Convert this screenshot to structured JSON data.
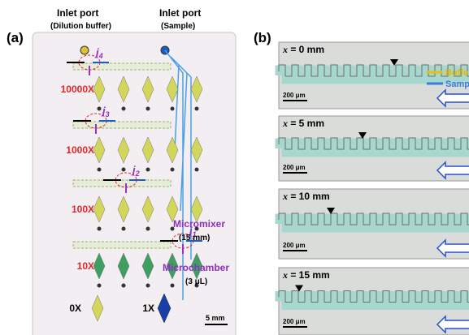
{
  "panel_a": {
    "label": "(a)",
    "inlets": [
      {
        "title": "Inlet port",
        "subtitle": "(Dilution buffer)"
      },
      {
        "title": "Inlet port",
        "subtitle": "(Sample)"
      }
    ],
    "junctions": [
      {
        "symbol": "j",
        "index": "4"
      },
      {
        "symbol": "j",
        "index": "3"
      },
      {
        "symbol": "j",
        "index": "2"
      },
      {
        "symbol": "j",
        "index": "1"
      }
    ],
    "dilutions": [
      "10000X",
      "1000X",
      "100X",
      "10X",
      "0X",
      "1X"
    ],
    "micromixer": {
      "label": "Micromixer",
      "size": "(15 mm)"
    },
    "microchamber": {
      "label": "Microchamber",
      "size": "(3 μL)"
    },
    "scale_bar": "5 mm"
  },
  "panel_b": {
    "label": "(b)",
    "legend": [
      "Buffe",
      "Samp"
    ],
    "frames": [
      {
        "variable": "x",
        "position": " = 0 mm",
        "scale_bar": "200 μm"
      },
      {
        "variable": "x",
        "position": " = 5 mm",
        "scale_bar": "200 μm"
      },
      {
        "variable": "x",
        "position": " = 10 mm",
        "scale_bar": "200 μm"
      },
      {
        "variable": "x",
        "position": " = 15 mm",
        "scale_bar": "200 μm"
      }
    ]
  }
}
